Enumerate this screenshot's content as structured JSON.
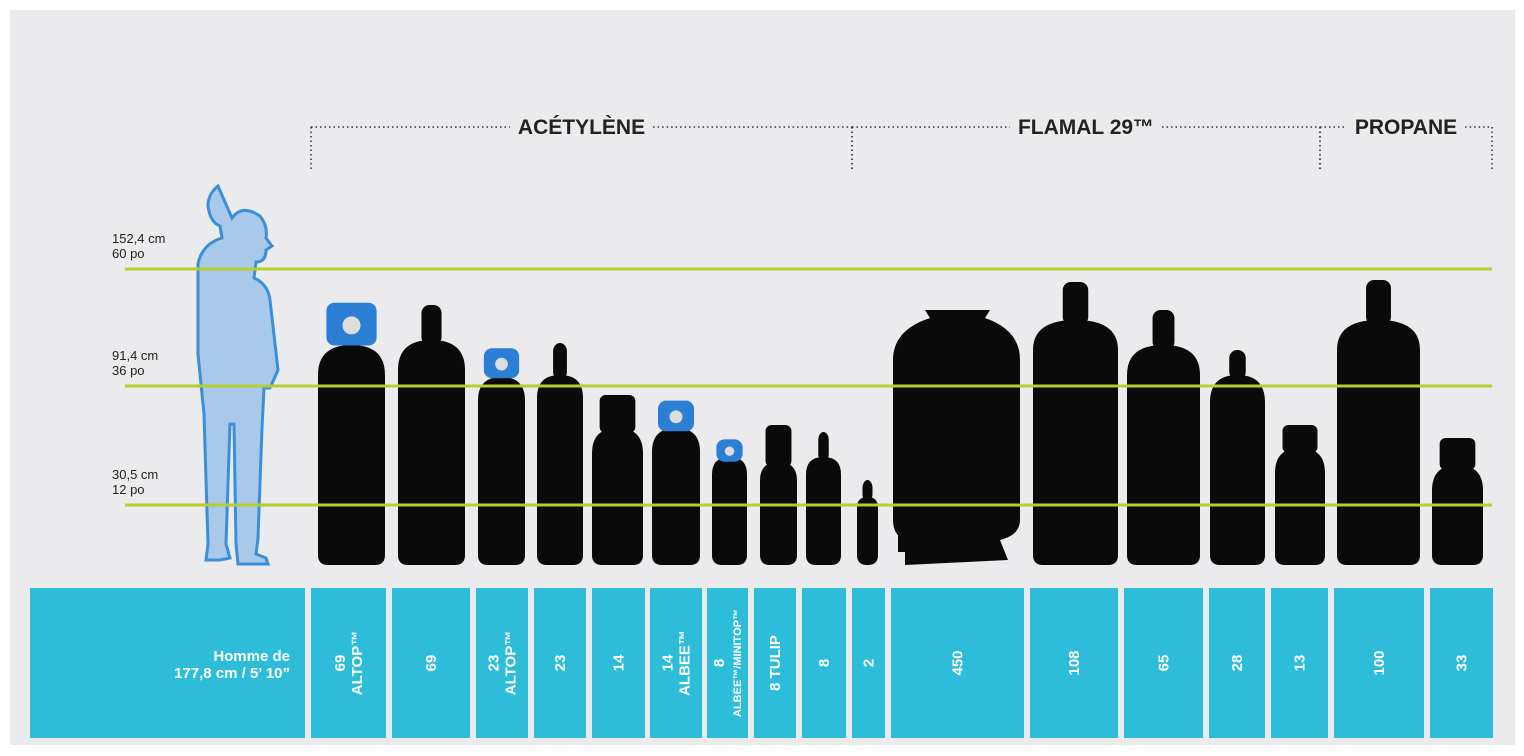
{
  "groups": [
    {
      "label": "ACÉTYLÈNE"
    },
    {
      "label": "FLAMAL 29™"
    },
    {
      "label": "PROPANE"
    }
  ],
  "height_lines": [
    {
      "cm": "152,4 cm",
      "in": "60 po"
    },
    {
      "cm": "91,4 cm",
      "in": "36 po"
    },
    {
      "cm": "30,5 cm",
      "in": "12 po"
    }
  ],
  "columns": [
    {
      "lines": [
        "Homme de",
        "177,8 cm / 5’ 10”"
      ]
    },
    {
      "lines": [
        "69",
        "ALTOP™"
      ]
    },
    {
      "lines": [
        "69"
      ]
    },
    {
      "lines": [
        "23",
        "ALTOP™"
      ]
    },
    {
      "lines": [
        "23"
      ]
    },
    {
      "lines": [
        "14"
      ]
    },
    {
      "lines": [
        "14",
        "ALBEE™"
      ]
    },
    {
      "lines": [
        "8",
        "ALBEE™/MINITOP™"
      ]
    },
    {
      "lines": [
        "8 TULIP"
      ]
    },
    {
      "lines": [
        "8"
      ]
    },
    {
      "lines": [
        "2"
      ]
    },
    {
      "lines": [
        "450"
      ]
    },
    {
      "lines": [
        "108"
      ]
    },
    {
      "lines": [
        "65"
      ]
    },
    {
      "lines": [
        "28"
      ]
    },
    {
      "lines": [
        "13"
      ]
    },
    {
      "lines": [
        "100"
      ]
    },
    {
      "lines": [
        "33"
      ]
    }
  ]
}
